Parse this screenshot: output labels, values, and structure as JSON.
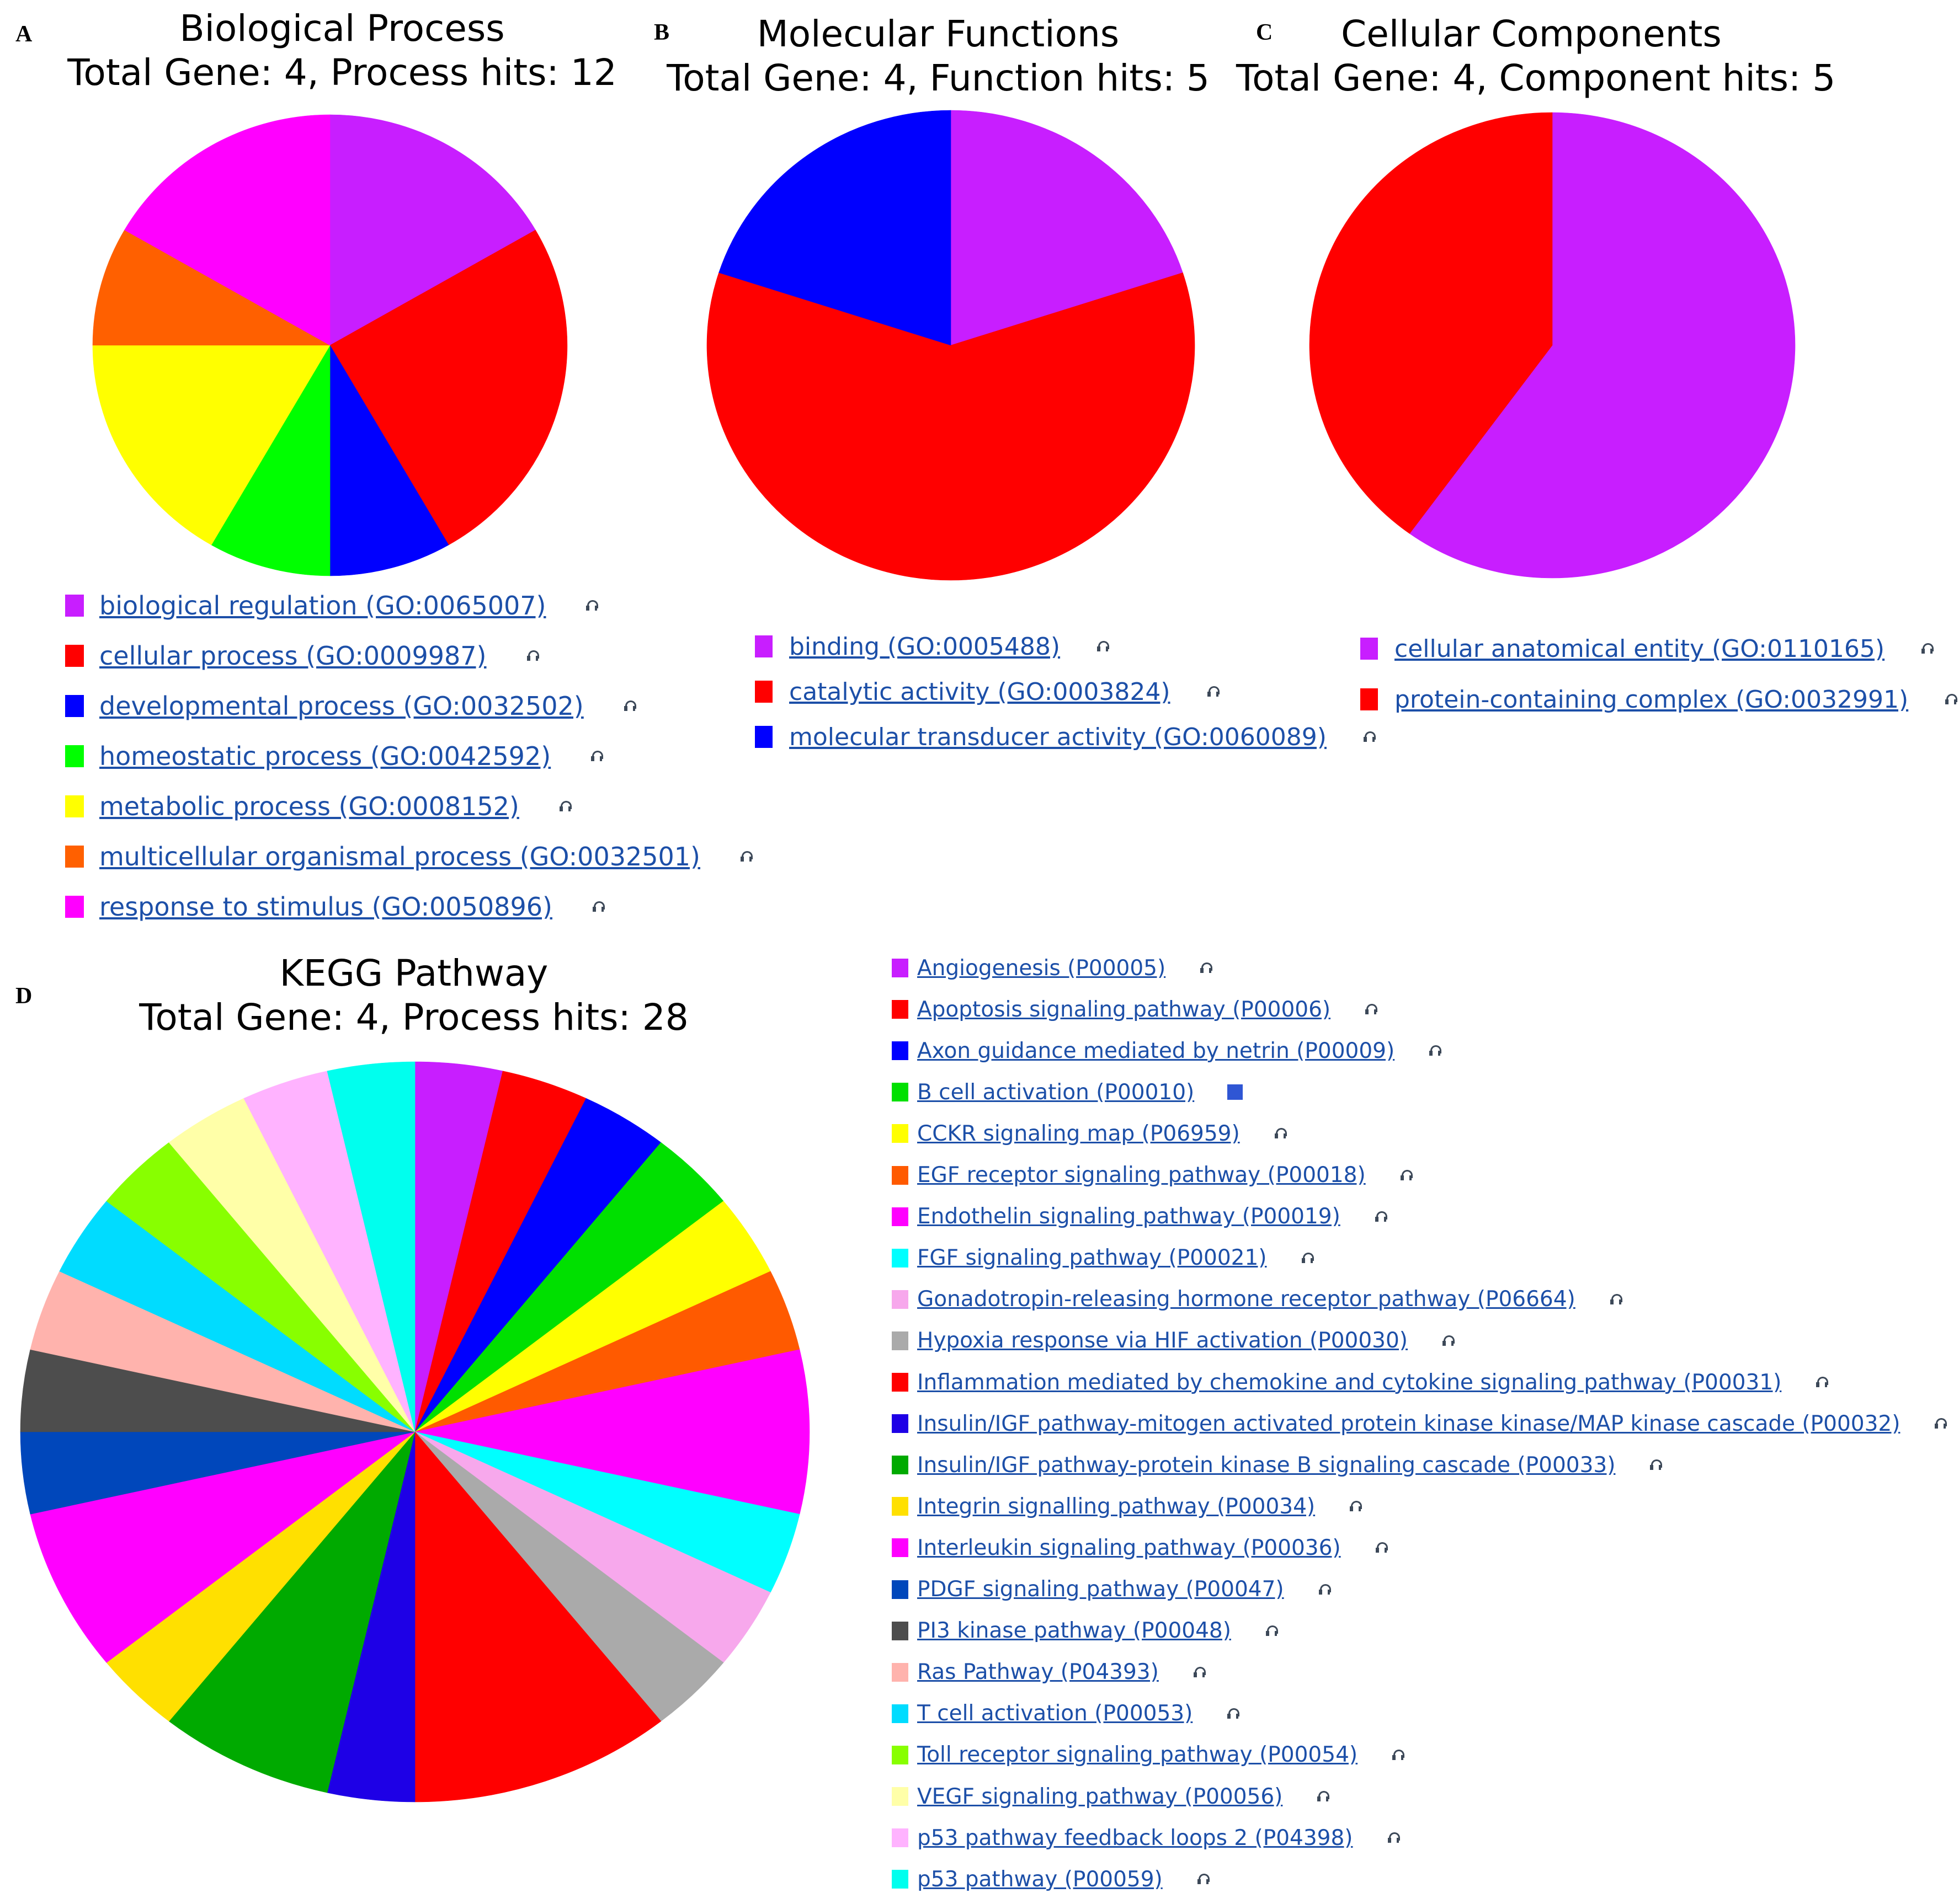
{
  "panels": {
    "a": {
      "letter": "A",
      "title": "Biological Process",
      "subtitle": "Total Gene: 4, Process hits: 12"
    },
    "b": {
      "letter": "B",
      "title": "Molecular Functions",
      "subtitle": "Total Gene: 4, Function hits: 5"
    },
    "c": {
      "letter": "C",
      "title": "Cellular Components",
      "subtitle": "Total Gene: 4, Component hits: 5"
    },
    "d": {
      "letter": "D",
      "title": "KEGG Pathway",
      "subtitle": "Total Gene: 4, Process hits: 28"
    }
  },
  "chart_data": [
    {
      "type": "pie",
      "title": "Biological Process",
      "subtitle": "Total Gene: 4, Process hits: 12",
      "labels": [
        "biological regulation (GO:0065007)",
        "cellular process (GO:0009987)",
        "developmental process (GO:0032502)",
        "homeostatic process (GO:0042592)",
        "metabolic process (GO:0008152)",
        "multicellular organismal process (GO:0032501)",
        "response to stimulus (GO:0050896)"
      ],
      "values": [
        2,
        3,
        1,
        1,
        2,
        1,
        2
      ],
      "colors": [
        "#c81eff",
        "#ff0000",
        "#0000ff",
        "#00ff00",
        "#ffff00",
        "#ff6000",
        "#ff00ff"
      ],
      "legend_placement": "bottom"
    },
    {
      "type": "pie",
      "title": "Molecular Functions",
      "subtitle": "Total Gene: 4, Function hits: 5",
      "labels": [
        "binding (GO:0005488)",
        "catalytic activity (GO:0003824)",
        "molecular transducer activity (GO:0060089)"
      ],
      "values": [
        1,
        3,
        1
      ],
      "colors": [
        "#c81eff",
        "#ff0000",
        "#0000ff"
      ],
      "legend_placement": "bottom"
    },
    {
      "type": "pie",
      "title": "Cellular Components",
      "subtitle": "Total Gene: 4, Component hits: 5",
      "labels": [
        "cellular anatomical entity (GO:0110165)",
        "protein-containing complex (GO:0032991)"
      ],
      "values": [
        3,
        2
      ],
      "colors": [
        "#c81eff",
        "#ff0000"
      ],
      "legend_placement": "bottom"
    },
    {
      "type": "pie",
      "title": "KEGG Pathway",
      "subtitle": "Total Gene: 4, Process hits: 28",
      "labels": [
        "Angiogenesis (P00005)",
        "Apoptosis signaling pathway (P00006)",
        "Axon guidance mediated by netrin (P00009)",
        "B cell activation (P00010)",
        "CCKR signaling map (P06959)",
        "EGF receptor signaling pathway (P00018)",
        "Endothelin signaling pathway (P00019)",
        "FGF signaling pathway (P00021)",
        "Gonadotropin-releasing hormone receptor pathway (P06664)",
        "Hypoxia response via HIF activation (P00030)",
        "Inflammation mediated by chemokine and cytokine signaling pathway (P00031)",
        "Insulin/IGF pathway-mitogen activated protein kinase kinase/MAP kinase cascade (P00032)",
        "Insulin/IGF pathway-protein kinase B signaling cascade (P00033)",
        "Integrin signalling pathway (P00034)",
        "Interleukin signaling pathway (P00036)",
        "PDGF signaling pathway (P00047)",
        "PI3 kinase pathway (P00048)",
        "Ras Pathway (P04393)",
        "T cell activation (P00053)",
        "Toll receptor signaling pathway (P00054)",
        "VEGF signaling pathway (P00056)",
        "p53 pathway feedback loops 2 (P04398)",
        "p53 pathway (P00059)"
      ],
      "values": [
        1,
        1,
        1,
        1,
        1,
        1,
        2,
        1,
        1,
        1,
        3,
        1,
        2,
        1,
        2,
        1,
        1,
        1,
        1,
        1,
        1,
        1,
        1
      ],
      "colors": [
        "#c81eff",
        "#ff0000",
        "#0000ff",
        "#00e000",
        "#ffff00",
        "#ff5a00",
        "#ff00ff",
        "#00ffff",
        "#f7a8ec",
        "#aaaaaa",
        "#ff0000",
        "#1e00e6",
        "#00aa00",
        "#ffe000",
        "#ff00ff",
        "#0047bb",
        "#4d4d4d",
        "#ffb3ad",
        "#00dcff",
        "#88ff00",
        "#ffffa8",
        "#ffb3ff",
        "#00ffee"
      ],
      "legend_placement": "right"
    }
  ],
  "tool_icon": "tool-icon"
}
